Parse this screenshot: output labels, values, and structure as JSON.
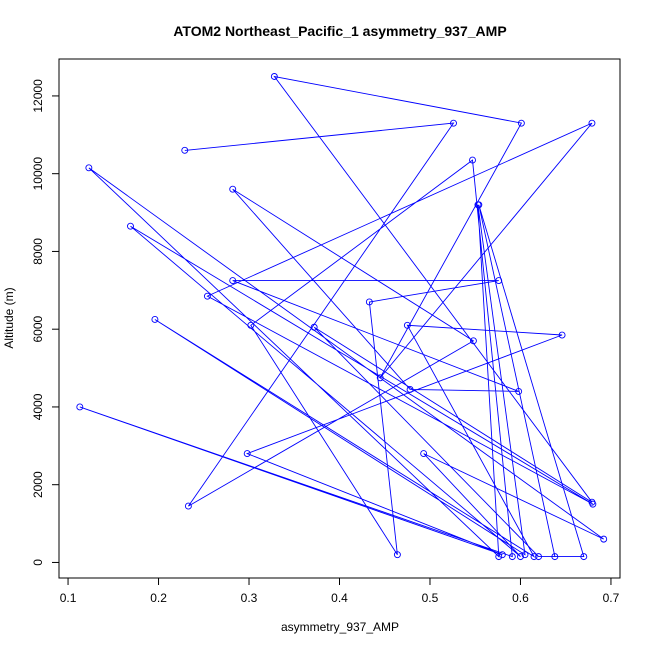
{
  "chart_data": {
    "type": "line",
    "title": "ATOM2 Northeast_Pacific_1 asymmetry_937_AMP",
    "xlabel": "asymmetry_937_AMP",
    "ylabel": "Altitude (m)",
    "xlim": [
      0.09,
      0.71
    ],
    "ylim": [
      -400,
      12950
    ],
    "xticks": [
      0.1,
      0.2,
      0.3,
      0.4,
      0.5,
      0.6,
      0.7
    ],
    "xtick_labels": [
      "0.1",
      "0.2",
      "0.3",
      "0.4",
      "0.5",
      "0.6",
      "0.7"
    ],
    "yticks": [
      0,
      2000,
      4000,
      6000,
      8000,
      10000,
      12000
    ],
    "ytick_labels": [
      "0",
      "2000",
      "4000",
      "6000",
      "8000",
      "10000",
      "12000"
    ],
    "grid": false,
    "legend": "none",
    "series_color": "#0000ff",
    "series": [
      {
        "x": [
          0.229,
          0.526,
          0.233,
          0.548,
          0.282,
          0.478,
          0.598,
          0.282,
          0.576,
          0.433,
          0.464,
          0.302,
          0.547,
          0.591,
          0.113,
          0.58,
          0.298,
          0.646,
          0.475,
          0.615,
          0.196,
          0.605,
          0.553,
          0.576,
          0.123,
          0.692,
          0.493,
          0.6,
          0.169,
          0.68,
          0.254,
          0.679,
          0.445,
          0.601,
          0.328,
          0.679,
          0.372,
          0.62,
          0.67,
          0.554,
          0.638
        ],
        "y": [
          10600,
          11300,
          1450,
          5700,
          9600,
          4450,
          4400,
          7250,
          7250,
          6700,
          200,
          6100,
          10350,
          150,
          4000,
          200,
          2800,
          5850,
          6100,
          150,
          6250,
          200,
          9200,
          150,
          10150,
          600,
          2800,
          150,
          8650,
          1500,
          6850,
          11300,
          4750,
          11300,
          12500,
          1550,
          6050,
          150,
          150,
          9200,
          150
        ]
      }
    ]
  }
}
